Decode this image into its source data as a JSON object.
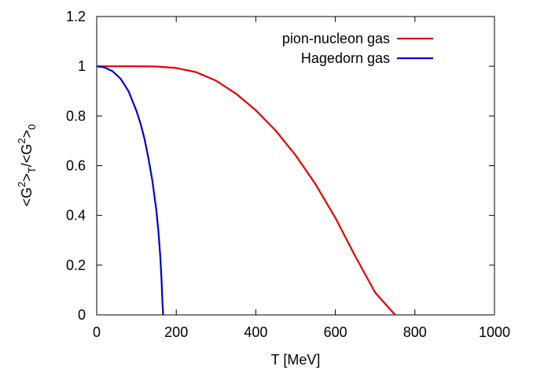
{
  "chart_data": {
    "type": "line",
    "title": "",
    "xlabel": "T [MeV]",
    "ylabel": {
      "parts": [
        {
          "text": "<G",
          "style": "normal"
        },
        {
          "text": "2",
          "style": "sup"
        },
        {
          "text": ">",
          "style": "normal"
        },
        {
          "text": "T",
          "style": "sub"
        },
        {
          "text": "/<G",
          "style": "normal"
        },
        {
          "text": "2",
          "style": "sup"
        },
        {
          "text": ">",
          "style": "normal"
        },
        {
          "text": "0",
          "style": "sub"
        }
      ]
    },
    "xlim": [
      0,
      1000
    ],
    "ylim": [
      0,
      1.2
    ],
    "xticks": [
      0,
      200,
      400,
      600,
      800,
      1000
    ],
    "xtick_labels": [
      "0",
      "200",
      "400",
      "600",
      "800",
      "1000"
    ],
    "yticks": [
      0,
      0.2,
      0.4,
      0.6,
      0.8,
      1.0,
      1.2
    ],
    "ytick_labels": [
      "0",
      "0.2",
      "0.4",
      "0.6",
      "0.8",
      "1",
      "1.2"
    ],
    "grid": false,
    "legend": {
      "placement": "top-right"
    },
    "series": [
      {
        "name": "pion-nucleon gas",
        "color": "#e00000",
        "x": [
          0,
          50,
          100,
          150,
          200,
          250,
          300,
          350,
          400,
          450,
          500,
          550,
          600,
          650,
          700,
          750
        ],
        "y": [
          1.0,
          1.0,
          1.0,
          0.999,
          0.993,
          0.976,
          0.942,
          0.89,
          0.823,
          0.741,
          0.642,
          0.526,
          0.39,
          0.236,
          0.09,
          0.0
        ]
      },
      {
        "name": "Hagedorn gas",
        "color": "#0000d0",
        "x": [
          0,
          20,
          40,
          60,
          80,
          100,
          110,
          120,
          130,
          140,
          150,
          155,
          160,
          163,
          165,
          167
        ],
        "y": [
          1.0,
          0.995,
          0.98,
          0.95,
          0.9,
          0.82,
          0.77,
          0.71,
          0.63,
          0.54,
          0.42,
          0.34,
          0.23,
          0.14,
          0.06,
          0.0
        ]
      }
    ]
  }
}
